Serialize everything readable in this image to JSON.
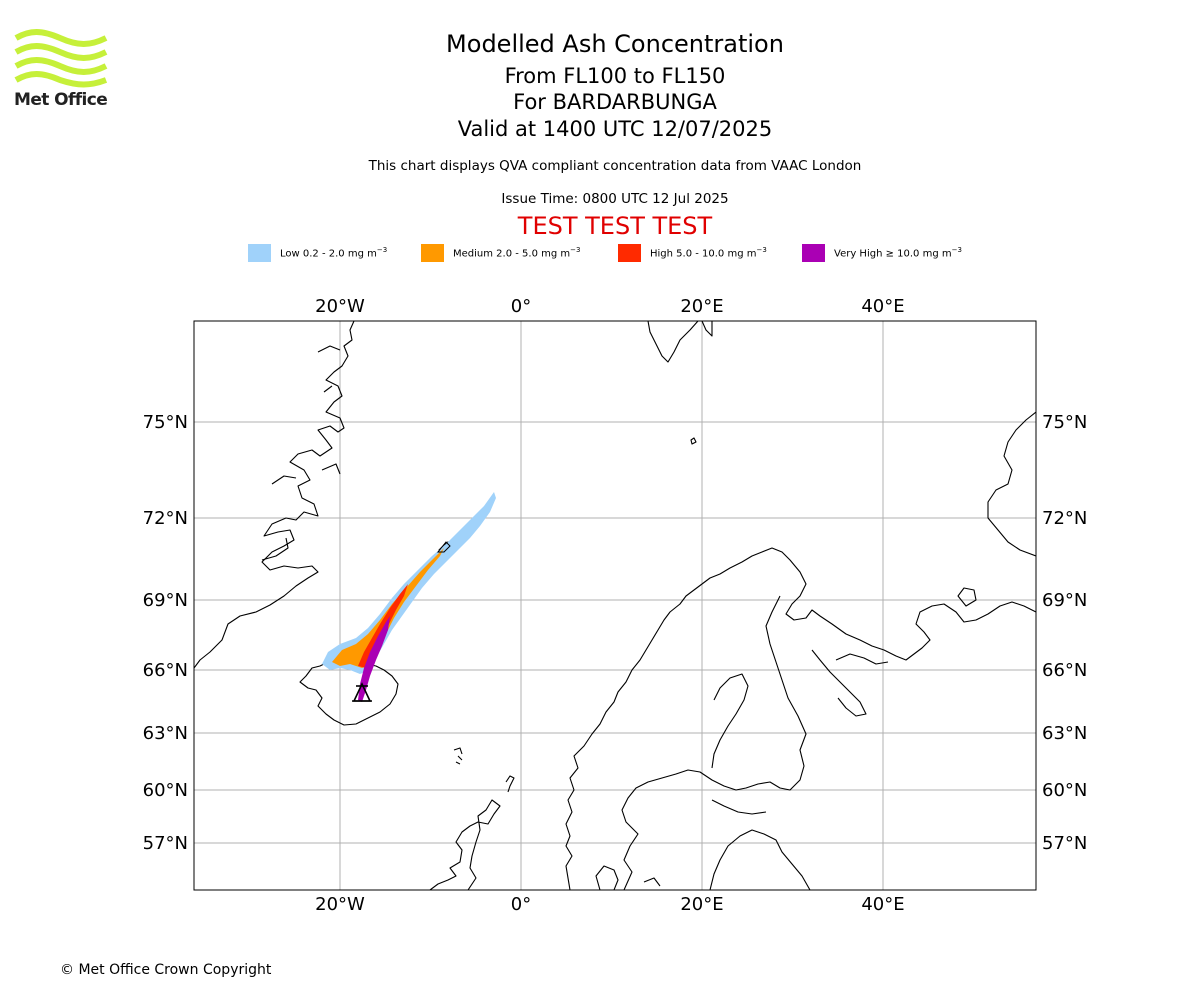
{
  "logo": {
    "name": "Met Office",
    "color": "#c6f03a"
  },
  "header": {
    "title": "Modelled Ash Concentration",
    "flight_levels": "From FL100 to FL150",
    "volcano": "For BARDARBUNGA",
    "valid_time": "Valid at 1400 UTC 12/07/2025",
    "subtitle": "This chart displays QVA compliant concentration data from VAAC London",
    "issue_time": "Issue Time: 0800 UTC 12 Jul 2025",
    "test_banner": "TEST TEST TEST"
  },
  "legend": [
    {
      "label": "Low 0.2 - 2.0 mg m",
      "exp": "−3",
      "color": "#a0d2fa"
    },
    {
      "label": "Medium 2.0 - 5.0 mg m",
      "exp": "−3",
      "color": "#ff9900"
    },
    {
      "label": "High 5.0 - 10.0 mg m",
      "exp": "−3",
      "color": "#ff2a00"
    },
    {
      "label": "Very High ≥ 10.0 mg m",
      "exp": "−3",
      "color": "#aa00b4"
    }
  ],
  "map": {
    "projection": "Lambert conformal",
    "lon_labels": [
      "20°W",
      "0°",
      "20°E",
      "40°E"
    ],
    "lat_labels": [
      "75°N",
      "72°N",
      "69°N",
      "66°N",
      "63°N",
      "60°N",
      "57°N"
    ],
    "gridline_color": "#b0b0b0",
    "volcano_marker": "triangle-icon"
  },
  "footer": {
    "copyright": "© Met Office Crown Copyright"
  }
}
